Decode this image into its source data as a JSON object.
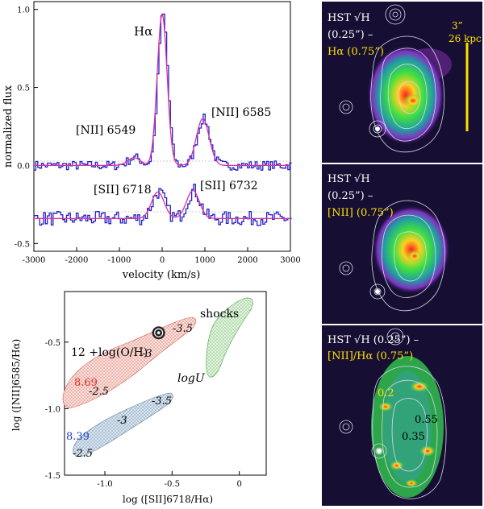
{
  "chart_data": [
    {
      "type": "line",
      "xlabel": "velocity (km/s)",
      "ylabel": "normalized flux",
      "xlim": [
        -3000,
        3000
      ],
      "ylim": [
        -0.55,
        1.05
      ],
      "x_ticks": [
        "-3000",
        "-2000",
        "-1000",
        "0",
        "1000",
        "2000",
        "3000"
      ],
      "x_tick_values": [
        -3000,
        -2000,
        -1000,
        0,
        1000,
        2000,
        3000
      ],
      "y_ticks": [
        "1.0",
        "0.5",
        "0.0",
        "-0.5"
      ],
      "y_tick_values": [
        1.0,
        0.5,
        0.0,
        -0.5
      ],
      "labels": {
        "ha": "Hα",
        "nii6549": "[NII] 6549",
        "nii6585": "[NII] 6585",
        "sii6718": "[SII] 6718",
        "sii6732": "[SII] 6732"
      },
      "upper_fit": {
        "baseline": 0.0,
        "lines": [
          [
            -660,
            0.05,
            150
          ],
          [
            0,
            0.97,
            115
          ],
          [
            950,
            0.3,
            150
          ]
        ]
      },
      "lower_fit": {
        "baseline": -0.34,
        "lines": [
          [
            -100,
            0.17,
            150
          ],
          [
            720,
            0.18,
            150
          ]
        ]
      },
      "series": [
        {
          "name": "observed",
          "color": "#2222cc"
        },
        {
          "name": "model fit",
          "color": "#e0309a"
        }
      ]
    },
    {
      "type": "scatter",
      "xlabel": "log ([SII]6718/Hα)",
      "ylabel": "log ([NII]6585/Hα)",
      "xlim": [
        -1.3,
        0.2
      ],
      "ylim": [
        -1.5,
        -0.12
      ],
      "x_ticks": [
        "-1.0",
        "-0.5",
        "0"
      ],
      "x_tick_values": [
        -1.0,
        -0.5,
        0.0
      ],
      "y_ticks": [
        "-0.5",
        "-1.0",
        "-1.5"
      ],
      "y_tick_values": [
        -0.5,
        -1.0,
        -1.5
      ],
      "point": {
        "x": -0.6,
        "y": -0.43,
        "xerr": 0.05,
        "yerr": 0.03
      },
      "labels": {
        "shocks": "shocks",
        "metallicity": "12 +log(O/H)",
        "logu": "logU",
        "z_high": "8.69",
        "z_low": "8.39",
        "u_high": [
          "-3.5",
          "-3",
          "-2.5"
        ],
        "u_low": [
          "-3.5",
          "-3",
          "-2.5"
        ]
      },
      "colors": {
        "high": "#e03020",
        "low": "#2040c0",
        "shock": "#30a030"
      }
    }
  ],
  "panels": [
    {
      "title1": "HST √H",
      "title2": "(0.25”) –",
      "title3": "Hα (0.75”)",
      "scale_angle": "3”",
      "scale_kpc": "26 kpc"
    },
    {
      "title1": "HST √H",
      "title2": "(0.25”) –",
      "title3": "[NII] (0.75”)"
    },
    {
      "title1": "HST √H (0.25”) –",
      "title2": "[NII]/Hα (0.75”)",
      "ratio_labels": [
        "0.2",
        "0.55",
        "0.35"
      ]
    }
  ]
}
